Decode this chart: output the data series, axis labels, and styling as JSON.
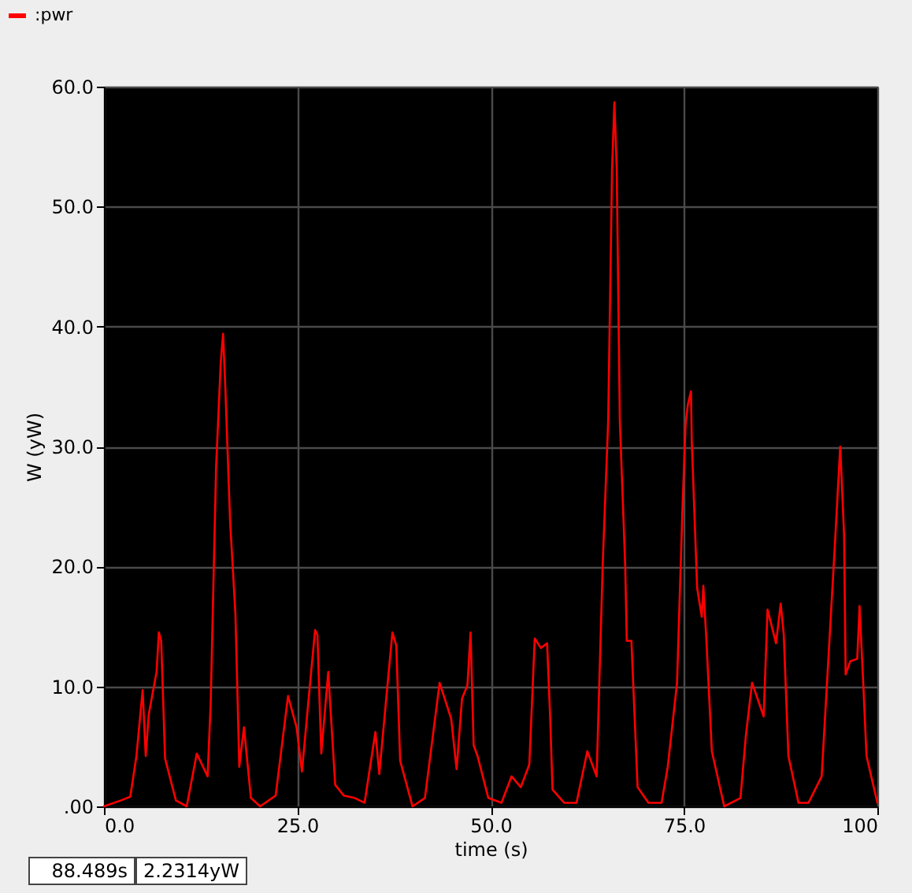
{
  "chart_data": {
    "type": "line",
    "xlabel": "time (s)",
    "ylabel": "W (yW)",
    "x": [
      0,
      2.2,
      3.4,
      4.2,
      5.0,
      5.4,
      5.8,
      6.8,
      7.1,
      7.4,
      7.9,
      9.3,
      10.7,
      12.0,
      13.4,
      13.8,
      14.5,
      15.1,
      15.4,
      15.7,
      16.3,
      17.0,
      17.5,
      18.1,
      19.0,
      20.2,
      22.2,
      23.8,
      24.9,
      25.6,
      26.6,
      27.3,
      27.6,
      28.1,
      29.0,
      29.9,
      31.0,
      32.4,
      33.7,
      35.1,
      35.6,
      36.5,
      37.3,
      37.8,
      38.3,
      39.9,
      41.5,
      43.4,
      44.9,
      45.6,
      46.3,
      47.0,
      47.4,
      47.8,
      48.3,
      49.7,
      51.4,
      52.7,
      53.9,
      55.0,
      55.7,
      56.5,
      57.3,
      57.7,
      58.0,
      59.5,
      61.1,
      62.5,
      63.7,
      64.5,
      65.2,
      65.7,
      66.0,
      66.3,
      66.7,
      67.4,
      67.6,
      68.2,
      69.0,
      70.4,
      72.1,
      72.9,
      74.1,
      74.8,
      75.2,
      75.5,
      75.9,
      76.0,
      76.7,
      77.3,
      77.5,
      77.9,
      78.6,
      80.2,
      82.3,
      83.0,
      83.8,
      85.3,
      85.8,
      86.9,
      87.5,
      87.9,
      88.5,
      89.8,
      91.1,
      92.8,
      94.5,
      95.2,
      95.7,
      95.9,
      96.5,
      97.4,
      97.7,
      98.2,
      98.6,
      100
    ],
    "series": [
      {
        "name": ":pwr",
        "color": "#ff0000",
        "values": [
          0,
          0.5,
          0.8,
          4.2,
          9.7,
          4.2,
          7.7,
          11.2,
          14.5,
          13.8,
          4.0,
          0.5,
          0,
          4.4,
          2.5,
          8.6,
          28.3,
          37.0,
          39.4,
          34.8,
          23.9,
          16.0,
          3.3,
          6.6,
          0.7,
          0,
          0.9,
          9.2,
          6.6,
          2.9,
          9.9,
          14.7,
          14.3,
          4.4,
          11.2,
          1.8,
          0.9,
          0.7,
          0.3,
          6.2,
          2.7,
          9.0,
          14.5,
          13.4,
          3.8,
          0,
          0.7,
          10.3,
          7.3,
          3.1,
          9.0,
          10.1,
          14.5,
          5.1,
          4.2,
          0.7,
          0.3,
          2.5,
          1.6,
          3.5,
          14.0,
          13.2,
          13.6,
          7.3,
          1.4,
          0.3,
          0.3,
          4.6,
          2.5,
          20.4,
          32.2,
          53.2,
          58.7,
          53.2,
          32.2,
          20.0,
          13.8,
          13.8,
          1.6,
          0.3,
          0.3,
          3.3,
          10.3,
          24.8,
          31.8,
          33.5,
          34.6,
          30.5,
          18.2,
          15.8,
          18.4,
          13.8,
          4.6,
          0,
          0.7,
          5.9,
          10.3,
          7.5,
          16.4,
          13.6,
          16.9,
          14.3,
          4.2,
          0.3,
          0.3,
          2.5,
          21.7,
          30.0,
          22.6,
          11.0,
          12.1,
          12.3,
          16.7,
          9.9,
          4.2,
          0.3
        ]
      }
    ],
    "xlim": [
      0,
      100
    ],
    "xticks": [
      {
        "value": 0,
        "label": "0.0"
      },
      {
        "value": 25,
        "label": "25.0"
      },
      {
        "value": 50,
        "label": "50.0"
      },
      {
        "value": 75,
        "label": "75.0"
      },
      100
    ],
    "ylim": [
      0,
      60
    ],
    "yticks": [
      {
        "value": 0,
        "label": ".00"
      },
      {
        "value": 10,
        "label": "10.0"
      },
      {
        "value": 20,
        "label": "20.0"
      },
      {
        "value": 30,
        "label": "30.0"
      },
      {
        "value": 40,
        "label": "40.0"
      },
      {
        "value": 50,
        "label": "50.0"
      },
      {
        "value": 60,
        "label": "60.0"
      }
    ],
    "grid": true,
    "legend": "top left",
    "marker": "none",
    "line_style": "solid",
    "annotations": [
      "88.489s",
      "2.2314yW"
    ]
  }
}
